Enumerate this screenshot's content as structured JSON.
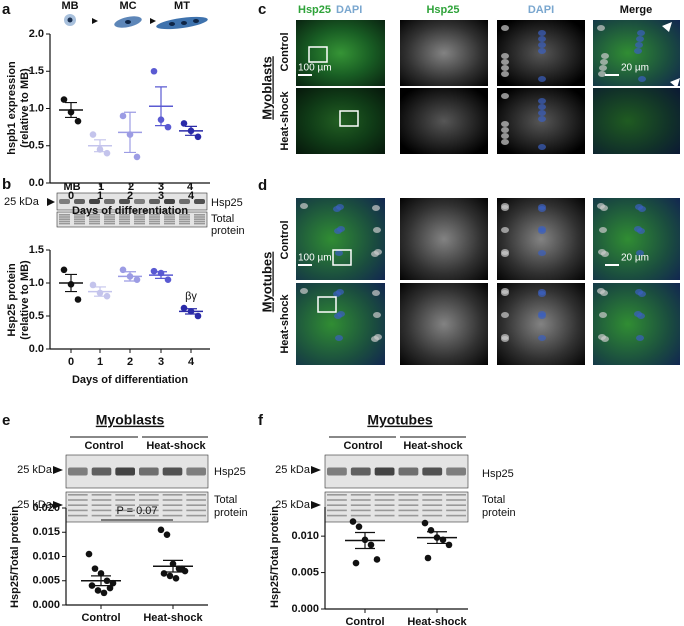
{
  "figure": {
    "panel_letters": [
      "a",
      "b",
      "c",
      "d",
      "e",
      "f"
    ],
    "stages": [
      "MB",
      "MC",
      "MT"
    ],
    "b_blot": {
      "lanes": [
        "MB",
        "1",
        "2",
        "3",
        "4"
      ],
      "marker": "25 kDa",
      "band": "Hsp25",
      "total": [
        "Total",
        "protein"
      ]
    },
    "c": {
      "headers": [
        "Hsp25",
        "DAPI",
        "Hsp25",
        "DAPI",
        "Merge"
      ],
      "rows": [
        "Control",
        "Heat-shock"
      ],
      "group": "Myoblasts",
      "scale_low": "100 µm",
      "scale_high": "20 µm"
    },
    "d": {
      "rows": [
        "Control",
        "Heat-shock"
      ],
      "group": "Myotubes",
      "scale_low": "100 µm",
      "scale_high": "20 µm"
    },
    "e_blot": {
      "groups": [
        "Control",
        "Heat-shock"
      ],
      "markers": [
        "25 kDa",
        "25 kDa"
      ],
      "band": "Hsp25",
      "total": [
        "Total",
        "protein"
      ]
    },
    "f_blot": {
      "groups": [
        "Control",
        "Heat-shock"
      ],
      "markers": [
        "25 kDa",
        "25 kDa"
      ],
      "band": "Hsp25",
      "total": [
        "Total",
        "protein"
      ]
    }
  },
  "chart_data": [
    {
      "type": "dot",
      "ylabel": [
        "hspb1 expression",
        "(relative to MB)"
      ],
      "xlabel": "Days of differentiation",
      "categories": [
        "0",
        "1",
        "2",
        "3",
        "4"
      ],
      "colors": [
        "#111111",
        "#c4c4ec",
        "#9c9ce4",
        "#5a5ad2",
        "#2a2aa8"
      ],
      "points": [
        [
          1.12,
          0.95,
          0.83
        ],
        [
          0.65,
          0.45,
          0.4
        ],
        [
          0.9,
          0.65,
          0.35
        ],
        [
          1.5,
          0.85,
          0.75
        ],
        [
          0.8,
          0.7,
          0.62
        ]
      ],
      "means": [
        0.98,
        0.5,
        0.68,
        1.03,
        0.7
      ],
      "errors": [
        0.1,
        0.08,
        0.27,
        0.26,
        0.06
      ],
      "ylim": [
        0,
        2.0
      ],
      "yticks": [
        {
          "value": 0,
          "label": "0.0"
        },
        0.5,
        {
          "value": 1,
          "label": "1.0"
        },
        1.5,
        {
          "value": 2,
          "label": "2.0"
        }
      ]
    },
    {
      "type": "dot",
      "ylabel": [
        "Hsp25 protein",
        "(relative to MB)"
      ],
      "xlabel": "Days of differentiation",
      "categories": [
        "0",
        "1",
        "2",
        "3",
        "4"
      ],
      "colors": [
        "#111111",
        "#c4c4ec",
        "#9c9ce4",
        "#5a5ad2",
        "#2a2aa8"
      ],
      "points": [
        [
          1.2,
          0.98,
          0.75
        ],
        [
          0.97,
          0.85,
          0.8
        ],
        [
          1.2,
          1.1,
          1.05
        ],
        [
          1.18,
          1.15,
          1.05
        ],
        [
          0.62,
          0.57,
          0.5
        ]
      ],
      "means": [
        1.0,
        0.87,
        1.1,
        1.12,
        0.57
      ],
      "errors": [
        0.13,
        0.07,
        0.07,
        0.05,
        0.04
      ],
      "annotation": "βγ",
      "ylim": [
        0,
        1.5
      ],
      "yticks": [
        {
          "value": 0,
          "label": "0.0"
        },
        0.5,
        {
          "value": 1,
          "label": "1.0"
        },
        1.5
      ]
    },
    {
      "type": "dot",
      "title": "Myoblasts",
      "ylabel": [
        "Hsp25/Total protein"
      ],
      "categories": [
        "Control",
        "Heat-shock"
      ],
      "color": "#111111",
      "points": [
        [
          0.0105,
          0.0075,
          0.0065,
          0.005,
          0.0045,
          0.004,
          0.003,
          0.0025,
          0.0035
        ],
        [
          0.0155,
          0.0145,
          0.0085,
          0.0075,
          0.007,
          0.0065,
          0.006,
          0.0055,
          0.0075
        ]
      ],
      "means": [
        0.005,
        0.008
      ],
      "errors": [
        0.001,
        0.0012
      ],
      "annotation": "P = 0.07",
      "ylim": [
        0,
        0.02
      ],
      "yticks": [
        {
          "value": 0,
          "label": "0.000"
        },
        {
          "value": 0.005,
          "label": "0.005"
        },
        {
          "value": 0.01,
          "label": "0.010"
        },
        {
          "value": 0.015,
          "label": "0.015"
        },
        {
          "value": 0.02,
          "label": "0.020"
        }
      ]
    },
    {
      "type": "dot",
      "title": "Myotubes",
      "ylabel": [
        "Hsp25/Total protein"
      ],
      "categories": [
        "Control",
        "Heat-shock"
      ],
      "color": "#111111",
      "points": [
        [
          0.012,
          0.0113,
          0.0095,
          0.0088,
          0.0068,
          0.0063
        ],
        [
          0.0118,
          0.0108,
          0.0098,
          0.0095,
          0.0088,
          0.007
        ]
      ],
      "means": [
        0.0094,
        0.0098
      ],
      "errors": [
        0.0011,
        0.0008
      ],
      "ylim": [
        0,
        0.014
      ],
      "yticks": [
        {
          "value": 0,
          "label": "0.000"
        },
        {
          "value": 0.005,
          "label": "0.005"
        },
        {
          "value": 0.01,
          "label": "0.010"
        }
      ]
    }
  ]
}
